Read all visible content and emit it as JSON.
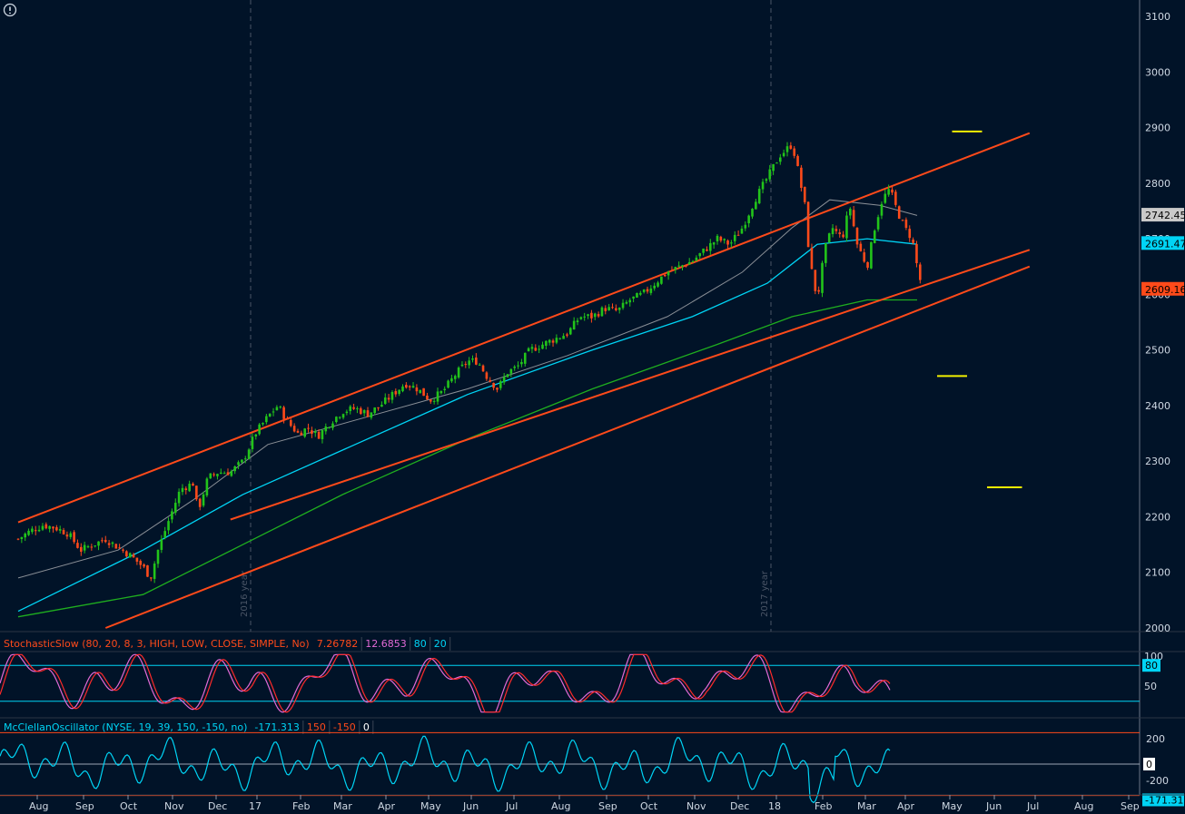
{
  "colors": {
    "background": "#011328",
    "up": "#22c41a",
    "down": "#ff4a1a",
    "channel": "#ff4a1a",
    "sma_fast": "#00d4f5",
    "sma_slow": "#8a8f96",
    "sma_long": "#1fae1f",
    "level": "#f4f000",
    "stoch_k": "#e26ad6",
    "stoch_d": "#ff2a2a",
    "mcclellan": "#00d4f5",
    "grid": "#3a4454"
  },
  "icons": {
    "info": "info-icon"
  },
  "price_labels": [
    {
      "text": "2742.45",
      "value": 2742.45,
      "bg": "#c9c9c9",
      "fg": "#000000"
    },
    {
      "text": "2691.47",
      "value": 2691.47,
      "bg": "#00d4f5",
      "fg": "#000000"
    },
    {
      "text": "2609.16",
      "value": 2609.16,
      "bg": "#ff4a1a",
      "fg": "#000000"
    }
  ],
  "year_markers": [
    "2016 year",
    "2017 year"
  ],
  "stoch": {
    "parts": [
      {
        "text": "StochasticSlow (80, 20, 8, 3, HIGH, LOW, CLOSE, SIMPLE, No)",
        "color": "#ff4a1a"
      },
      {
        "text": "7.26782",
        "color": "#ff4a1a"
      },
      {
        "text": "12.6853",
        "color": "#e26ad6"
      },
      {
        "text": "80",
        "color": "#00d4f5"
      },
      {
        "text": "20",
        "color": "#00d4f5"
      }
    ],
    "axis_ticks": [
      "100",
      "50"
    ],
    "badge": "80"
  },
  "mcclellan": {
    "parts": [
      {
        "text": "McClellanOscillator (NYSE, 19, 39, 150, -150, no)",
        "color": "#00d4f5"
      },
      {
        "text": "-171.313",
        "color": "#00d4f5"
      },
      {
        "text": "150",
        "color": "#ff4a1a"
      },
      {
        "text": "-150",
        "color": "#ff4a1a"
      },
      {
        "text": "0",
        "color": "#ffffff"
      }
    ],
    "axis_ticks": [
      "200",
      "-200"
    ],
    "badge_zero": "0",
    "badge_value": "-171.31"
  },
  "chart_data": {
    "type": "candlestick",
    "y_ticks": [
      2000,
      2100,
      2200,
      2300,
      2400,
      2500,
      2600,
      2700,
      2800,
      2900,
      3000,
      3100
    ],
    "y_range": [
      2000,
      3100
    ],
    "x_labels": [
      "Aug",
      "Sep",
      "Oct",
      "Nov",
      "Dec",
      "17",
      "Feb",
      "Mar",
      "Apr",
      "May",
      "Jun",
      "Jul",
      "Aug",
      "Sep",
      "Oct",
      "Nov",
      "Dec",
      "18",
      "Feb",
      "Mar",
      "Apr",
      "May",
      "Jun",
      "Jul",
      "Aug",
      "Sep"
    ],
    "close_path": [
      [
        0,
        2160
      ],
      [
        0.5,
        2175
      ],
      [
        1,
        2185
      ],
      [
        1.5,
        2180
      ],
      [
        2,
        2170
      ],
      [
        2.5,
        2140
      ],
      [
        3,
        2150
      ],
      [
        3.5,
        2160
      ],
      [
        4,
        2145
      ],
      [
        4.5,
        2130
      ],
      [
        5,
        2110
      ],
      [
        5.3,
        2090
      ],
      [
        5.6,
        2140
      ],
      [
        6,
        2190
      ],
      [
        6.5,
        2250
      ],
      [
        7,
        2260
      ],
      [
        7.2,
        2210
      ],
      [
        7.6,
        2270
      ],
      [
        8,
        2280
      ],
      [
        8.5,
        2280
      ],
      [
        9,
        2300
      ],
      [
        9.5,
        2350
      ],
      [
        10,
        2380
      ],
      [
        10.4,
        2400
      ],
      [
        10.8,
        2370
      ],
      [
        11.2,
        2350
      ],
      [
        11.6,
        2360
      ],
      [
        12,
        2345
      ],
      [
        12.5,
        2370
      ],
      [
        13,
        2390
      ],
      [
        13.5,
        2395
      ],
      [
        14,
        2385
      ],
      [
        14.5,
        2400
      ],
      [
        15,
        2420
      ],
      [
        15.5,
        2440
      ],
      [
        16,
        2430
      ],
      [
        16.5,
        2410
      ],
      [
        17,
        2425
      ],
      [
        17.5,
        2455
      ],
      [
        18,
        2480
      ],
      [
        18.4,
        2480
      ],
      [
        18.8,
        2450
      ],
      [
        19.2,
        2430
      ],
      [
        19.6,
        2460
      ],
      [
        20,
        2470
      ],
      [
        20.5,
        2500
      ],
      [
        21,
        2510
      ],
      [
        21.5,
        2520
      ],
      [
        22,
        2530
      ],
      [
        22.5,
        2560
      ],
      [
        23,
        2560
      ],
      [
        23.5,
        2575
      ],
      [
        24,
        2570
      ],
      [
        24.5,
        2590
      ],
      [
        25,
        2600
      ],
      [
        25.5,
        2620
      ],
      [
        26,
        2640
      ],
      [
        26.5,
        2650
      ],
      [
        27,
        2660
      ],
      [
        27.5,
        2680
      ],
      [
        28,
        2700
      ],
      [
        28.5,
        2690
      ],
      [
        29,
        2720
      ],
      [
        29.5,
        2770
      ],
      [
        30,
        2810
      ],
      [
        30.5,
        2850
      ],
      [
        31,
        2870
      ],
      [
        31.2,
        2830
      ],
      [
        31.5,
        2760
      ],
      [
        31.7,
        2660
      ],
      [
        32,
        2590
      ],
      [
        32.3,
        2680
      ],
      [
        32.6,
        2720
      ],
      [
        33,
        2700
      ],
      [
        33.3,
        2760
      ],
      [
        33.6,
        2690
      ],
      [
        34,
        2650
      ],
      [
        34.3,
        2720
      ],
      [
        34.6,
        2770
      ],
      [
        34.9,
        2790
      ],
      [
        35.2,
        2750
      ],
      [
        35.5,
        2720
      ],
      [
        35.8,
        2700
      ],
      [
        36,
        2650
      ],
      [
        36.2,
        2610
      ]
    ],
    "sma_fast_path": [
      [
        0,
        2030
      ],
      [
        5,
        2140
      ],
      [
        9,
        2240
      ],
      [
        13,
        2320
      ],
      [
        18,
        2420
      ],
      [
        23,
        2500
      ],
      [
        27,
        2560
      ],
      [
        30,
        2620
      ],
      [
        32,
        2690
      ],
      [
        34,
        2700
      ],
      [
        36,
        2690
      ]
    ],
    "sma_slow_path": [
      [
        0,
        2090
      ],
      [
        4,
        2140
      ],
      [
        7,
        2230
      ],
      [
        10,
        2330
      ],
      [
        14,
        2380
      ],
      [
        18,
        2430
      ],
      [
        22,
        2490
      ],
      [
        26,
        2560
      ],
      [
        29,
        2640
      ],
      [
        31,
        2720
      ],
      [
        32.5,
        2770
      ],
      [
        34.5,
        2760
      ],
      [
        36,
        2742
      ]
    ],
    "sma_long_path": [
      [
        0,
        2020
      ],
      [
        5,
        2060
      ],
      [
        9,
        2150
      ],
      [
        13,
        2240
      ],
      [
        18,
        2340
      ],
      [
        23,
        2430
      ],
      [
        28,
        2510
      ],
      [
        31,
        2560
      ],
      [
        34,
        2590
      ],
      [
        36,
        2590
      ]
    ],
    "channel_upper": [
      [
        0,
        2190
      ],
      [
        40.5,
        2890
      ]
    ],
    "channel_mid_upper": [
      [
        8.5,
        2195
      ],
      [
        40.5,
        2680
      ]
    ],
    "channel_lower": [
      [
        3.5,
        2000
      ],
      [
        40.5,
        2650
      ]
    ],
    "levels": [
      {
        "value": 2893,
        "x0": 37.4,
        "x1": 38.6
      },
      {
        "value": 2453,
        "x0": 36.8,
        "x1": 38.0
      },
      {
        "value": 2253,
        "x0": 38.8,
        "x1": 40.2
      }
    ]
  }
}
